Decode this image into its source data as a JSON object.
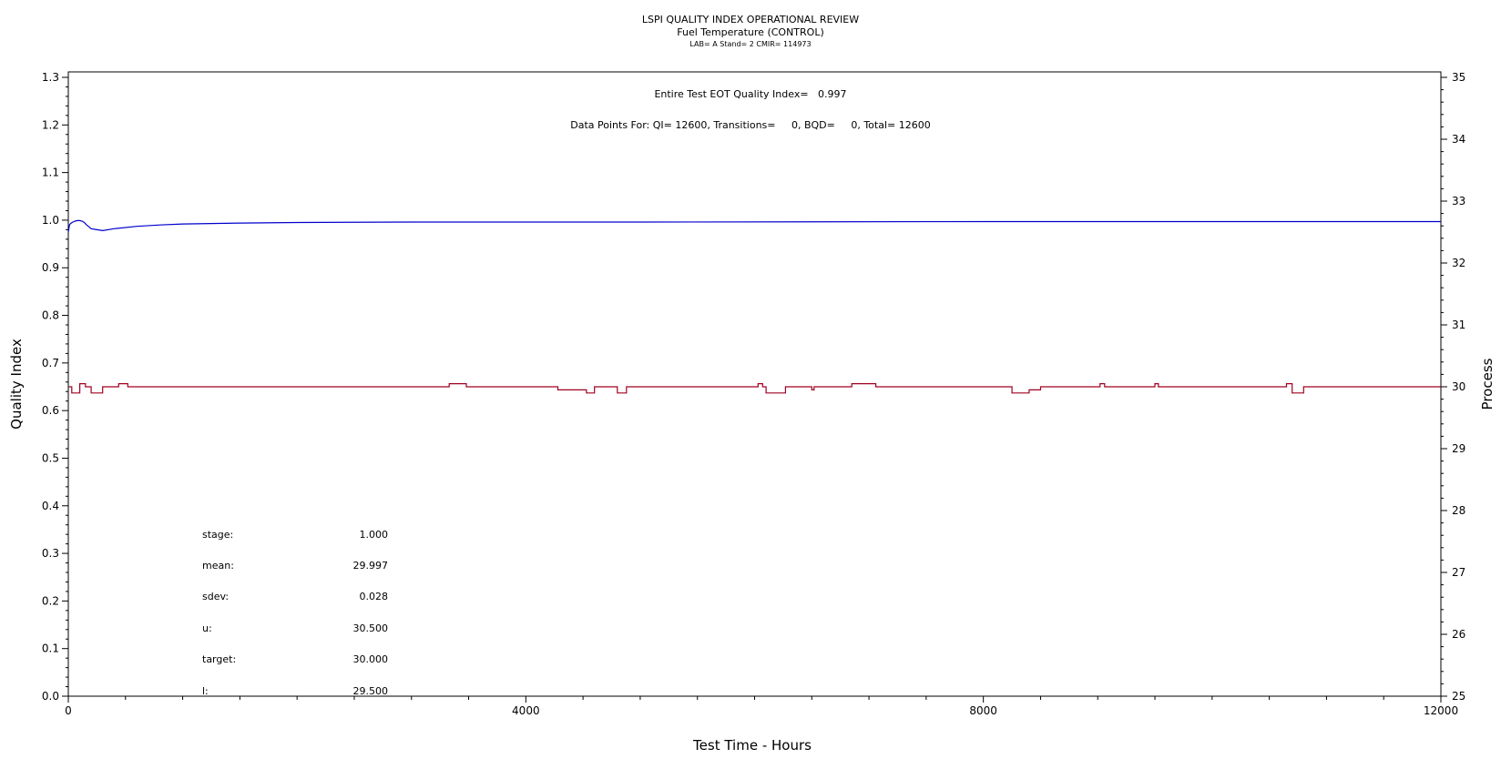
{
  "header": {
    "title": "LSPI QUALITY INDEX OPERATIONAL REVIEW",
    "subtitle": "Fuel Temperature (CONTROL)",
    "info": "LAB= A Stand= 2 CMIR= 114973"
  },
  "annotations": {
    "eot": "Entire Test EOT Quality Index=   0.997",
    "points": "Data Points For: QI= 12600, Transitions=     0, BQD=     0, Total= 12600"
  },
  "stats": [
    {
      "label": "stage:",
      "value": "1.000"
    },
    {
      "label": "mean:",
      "value": "29.997"
    },
    {
      "label": "sdev:",
      "value": "0.028"
    },
    {
      "label": "u:",
      "value": "30.500"
    },
    {
      "label": "target:",
      "value": "30.000"
    },
    {
      "label": "l:",
      "value": "29.500"
    }
  ],
  "colors": {
    "quality_index": "#0000cc",
    "process": "#a00020",
    "axis": "#000000"
  },
  "chart_data": {
    "type": "line",
    "title": "LSPI QUALITY INDEX OPERATIONAL REVIEW",
    "xlabel": "Test Time - Hours",
    "ylabel": "Quality Index",
    "y2label": "Process",
    "xlim": [
      0,
      12000
    ],
    "ylim": [
      0,
      1.3
    ],
    "y2lim": [
      25,
      35
    ],
    "x_ticks": [
      "0",
      "4000",
      "8000",
      "12000"
    ],
    "y_ticks": [
      "0.0",
      "0.1",
      "0.2",
      "0.3",
      "0.4",
      "0.5",
      "0.6",
      "0.7",
      "0.8",
      "0.9",
      "1.0",
      "1.1",
      "1.2",
      "1.3"
    ],
    "y2_ticks": [
      "25",
      "26",
      "27",
      "28",
      "29",
      "30",
      "31",
      "32",
      "33",
      "34",
      "35"
    ],
    "grid": false,
    "series": [
      {
        "axis": "left",
        "color": "#0000cc",
        "x": [
          0,
          10,
          20,
          40,
          60,
          80,
          100,
          120,
          140,
          160,
          180,
          200,
          250,
          300,
          400,
          600,
          800,
          1000,
          1500,
          2000,
          3000,
          5000,
          8000,
          12000
        ],
        "y": [
          0.975,
          0.99,
          0.993,
          0.996,
          0.998,
          0.999,
          0.999,
          0.998,
          0.995,
          0.99,
          0.986,
          0.982,
          0.98,
          0.978,
          0.982,
          0.987,
          0.99,
          0.992,
          0.994,
          0.995,
          0.996,
          0.996,
          0.997,
          0.997
        ]
      },
      {
        "axis": "right",
        "color": "#a00020",
        "x": [
          0,
          30,
          30,
          100,
          100,
          150,
          150,
          200,
          200,
          300,
          300,
          440,
          440,
          520,
          520,
          3330,
          3330,
          3480,
          3480,
          4280,
          4280,
          4530,
          4530,
          4600,
          4600,
          4800,
          4800,
          4880,
          4880,
          6030,
          6030,
          6070,
          6070,
          6100,
          6100,
          6270,
          6270,
          6500,
          6500,
          6520,
          6520,
          6850,
          6850,
          7060,
          7060,
          8250,
          8250,
          8400,
          8400,
          8500,
          8500,
          9020,
          9020,
          9060,
          9060,
          9500,
          9500,
          9530,
          9530,
          10650,
          10650,
          10700,
          10700,
          10800,
          10800,
          12000
        ],
        "y": [
          30.0,
          30.0,
          29.9,
          29.9,
          30.05,
          30.05,
          30.0,
          30.0,
          29.9,
          29.9,
          30.0,
          30.0,
          30.05,
          30.05,
          30.0,
          30.0,
          30.05,
          30.05,
          30.0,
          30.0,
          29.95,
          29.95,
          29.9,
          29.9,
          30.0,
          30.0,
          29.9,
          29.9,
          30.0,
          30.0,
          30.05,
          30.05,
          30.0,
          30.0,
          29.9,
          29.9,
          30.0,
          30.0,
          29.95,
          29.95,
          30.0,
          30.0,
          30.05,
          30.05,
          30.0,
          30.0,
          29.9,
          29.9,
          29.95,
          29.95,
          30.0,
          30.0,
          30.05,
          30.05,
          30.0,
          30.0,
          30.05,
          30.05,
          30.0,
          30.0,
          30.05,
          30.05,
          29.9,
          29.9,
          30.0,
          30.0
        ]
      }
    ]
  }
}
